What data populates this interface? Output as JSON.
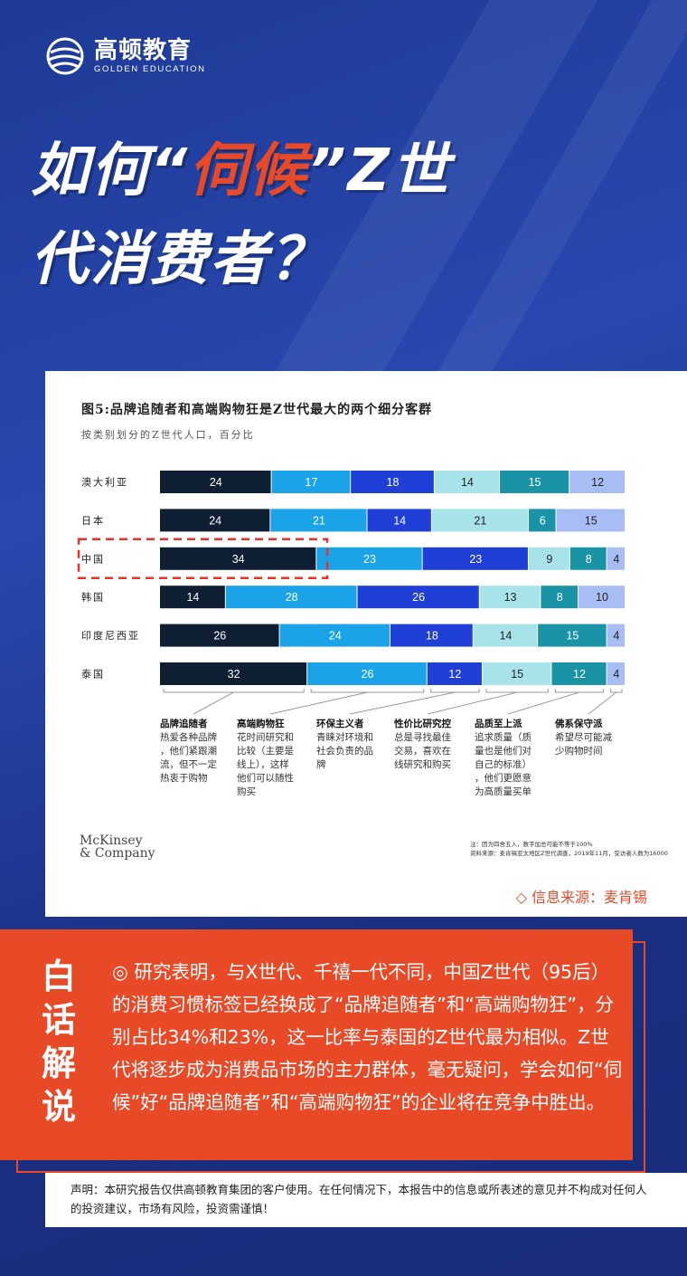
{
  "brand": {
    "name_cn": "高顿教育",
    "name_en": "GOLDEN EDUCATION"
  },
  "headline": {
    "part1": "如何“",
    "highlight": "伺候",
    "part2": "”Z世",
    "line2": "代消费者？"
  },
  "chart_data": {
    "type": "bar",
    "orientation": "horizontal-stacked-100",
    "title": "图5:品牌追随者和高端购物狂是Z世代最大的两个细分客群",
    "subtitle": "按类别划分的Z世代人口，百分比",
    "categories": [
      "澳大利亚",
      "日本",
      "中国",
      "韩国",
      "印度尼西亚",
      "泰国"
    ],
    "series": [
      {
        "name": "品牌追随者",
        "color": "#0e1f33",
        "values": [
          24,
          24,
          34,
          14,
          26,
          32
        ]
      },
      {
        "name": "高端购物狂",
        "color": "#1aa3e8",
        "values": [
          17,
          21,
          23,
          28,
          24,
          26
        ]
      },
      {
        "name": "环保主义者",
        "color": "#1f3fd6",
        "values": [
          18,
          14,
          23,
          26,
          18,
          12
        ]
      },
      {
        "name": "性价比研究控",
        "color": "#a8e3ea",
        "values": [
          14,
          21,
          9,
          13,
          14,
          15
        ]
      },
      {
        "name": "品质至上派",
        "color": "#1a93a6",
        "values": [
          15,
          6,
          8,
          8,
          15,
          12
        ]
      },
      {
        "name": "佛系保守派",
        "color": "#a9bdf5",
        "values": [
          12,
          15,
          4,
          10,
          4,
          4
        ]
      }
    ],
    "highlighted_category": "中国",
    "legend_descriptions": [
      {
        "name": "品牌追随者",
        "desc": "热爱各种品牌，他们紧跟潮流，但不一定热衷于购物"
      },
      {
        "name": "高端购物狂",
        "desc": "花时间研究和比较（主要是线上），这样他们可以随性购买"
      },
      {
        "name": "环保主义者",
        "desc": "青睐对环境和社会负责的品牌"
      },
      {
        "name": "性价比研究控",
        "desc": "总是寻找最佳交易，喜欢在线研究和购买"
      },
      {
        "name": "品质至上派",
        "desc": "追求质量（质量也是他们对自己的标准），他们更愿意为高质量买单"
      },
      {
        "name": "佛系保守派",
        "desc": "希望尽可能减少购物时间"
      }
    ],
    "notes": [
      "注：因为四舍五入，数字加总可能不等于100%",
      "资料来源：麦肯锡亚太地区Z世代调查，2019年11月，受访者人数为16000"
    ],
    "company": [
      "McKinsey",
      "& Company"
    ]
  },
  "source_label": "◇ 信息来源：麦肯锡",
  "explain": {
    "label": [
      "白",
      "话",
      "解",
      "说"
    ],
    "text": "◎  研究表明，与X世代、千禧一代不同，中国Z世代（95后）的消费习惯标签已经换成了“品牌追随者”和“高端购物狂”，分别占比34%和23%，这一比率与泰国的Z世代最为相似。Z世代将逐步成为消费品市场的主力群体，毫无疑问，学会如何“伺候”好“品牌追随者”和“高端购物狂”的企业将在竞争中胜出。"
  },
  "disclaimer": "声明：本研究报告仅供高顿教育集团的客户使用。在任何情况下，本报告中的信息或所表述的意见并不构成对任何人的投资建议，市场有风险，投资需谨慎！"
}
